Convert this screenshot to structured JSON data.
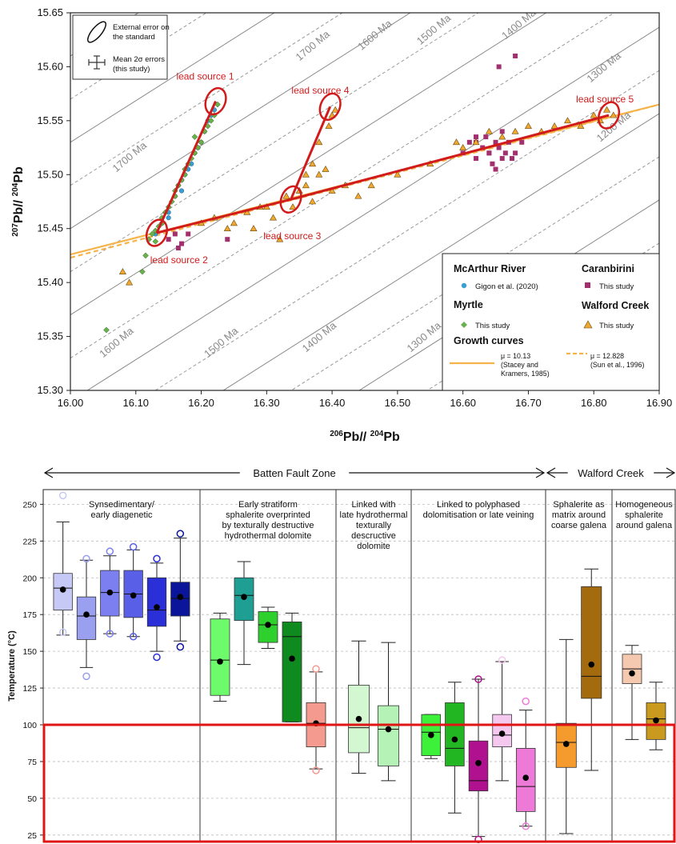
{
  "chart_data": [
    {
      "type": "scatter",
      "xlabel": "206 Pb/ 204 Pb",
      "ylabel": "207 Pb/ 204 Pb",
      "xlim": [
        16.0,
        16.9
      ],
      "ylim": [
        15.3,
        15.65
      ],
      "x_ticks": [
        "16.00",
        "16.10",
        "16.20",
        "16.30",
        "16.40",
        "16.50",
        "16.60",
        "16.70",
        "16.80",
        "16.90"
      ],
      "y_ticks": [
        "15.30",
        "15.35",
        "15.40",
        "15.45",
        "15.50",
        "15.55",
        "15.60",
        "15.65"
      ],
      "x_tick_values": [
        16.0,
        16.1,
        16.2,
        16.3,
        16.4,
        16.5,
        16.6,
        16.7,
        16.8,
        16.9
      ],
      "y_tick_values": [
        15.3,
        15.35,
        15.4,
        15.45,
        15.5,
        15.55,
        15.6,
        15.65
      ],
      "top_inset": {
        "ellipse_text": [
          "External error on",
          "the standard"
        ],
        "errorbar_text": [
          "Mean 2σ errors",
          "(this study)"
        ]
      },
      "isochron_labels": [
        "1700 Ma",
        "1600 Ma",
        "1500 Ma",
        "1400 Ma",
        "1300 Ma",
        "1700 Ma",
        "1200 Ma",
        "1600 Ma",
        "1500 Ma",
        "1400 Ma",
        "1300 Ma"
      ],
      "isochron_label_pos": [
        [
          16.35,
          15.605
        ],
        [
          16.445,
          15.615
        ],
        [
          16.535,
          15.62
        ],
        [
          16.665,
          15.625
        ],
        [
          16.795,
          15.585
        ],
        [
          16.07,
          15.502
        ],
        [
          16.81,
          15.53
        ],
        [
          16.05,
          15.33
        ],
        [
          16.21,
          15.33
        ],
        [
          16.36,
          15.335
        ],
        [
          16.52,
          15.335
        ]
      ],
      "lead_sources": [
        {
          "label": "lead source 1",
          "x": 16.222,
          "y": 15.568
        },
        {
          "label": "lead source 4",
          "x": 16.397,
          "y": 15.563
        },
        {
          "label": "lead source 3",
          "x": 16.337,
          "y": 15.477
        },
        {
          "label": "lead source 2",
          "x": 16.132,
          "y": 15.446
        },
        {
          "label": "lead source 5",
          "x": 16.823,
          "y": 15.555
        }
      ],
      "lead_source_label_pos": [
        [
          16.162,
          15.588
        ],
        [
          16.338,
          15.575
        ],
        [
          16.295,
          15.44
        ],
        [
          16.122,
          15.418
        ],
        [
          16.773,
          15.567
        ]
      ],
      "trend_lines": [
        [
          [
            16.132,
            15.446
          ],
          [
            16.222,
            15.568
          ]
        ],
        [
          [
            16.337,
            15.477
          ],
          [
            16.397,
            15.563
          ]
        ],
        [
          [
            16.132,
            15.446
          ],
          [
            16.337,
            15.477
          ],
          [
            16.823,
            15.555
          ]
        ]
      ],
      "growth_curves": [
        {
          "name": "μ = 10.13 (Stacey and Kramers, 1985)",
          "x": [
            16.0,
            16.9
          ],
          "y": [
            15.426,
            15.565
          ],
          "color": "#f5b34a",
          "style": "solid"
        },
        {
          "name": "μ = 12.828 (Sun et al., 1996)",
          "x": [
            16.0,
            16.9
          ],
          "y": [
            15.423,
            15.565
          ],
          "color": "#f5b34a",
          "style": "dashed"
        }
      ],
      "series": [
        {
          "name": "Gigon et al. (2020)",
          "group": "McArthur River",
          "color": "#3b9ed6",
          "marker": "circle",
          "x": [
            16.13,
            16.14,
            16.15,
            16.16,
            16.165,
            16.17,
            16.175,
            16.18,
            16.185,
            16.19,
            16.195,
            16.2,
            16.205,
            16.21,
            16.215,
            16.22,
            16.15,
            16.17
          ],
          "y": [
            15.445,
            15.455,
            15.465,
            15.48,
            15.49,
            15.495,
            15.5,
            15.505,
            15.51,
            15.52,
            15.525,
            15.53,
            15.54,
            15.55,
            15.555,
            15.56,
            15.46,
            15.485
          ]
        },
        {
          "name": "This study",
          "group": "Myrtle",
          "color": "#6ab04c",
          "marker": "diamond",
          "x": [
            16.055,
            16.11,
            16.115,
            16.12,
            16.125,
            16.13,
            16.135,
            16.14,
            16.145,
            16.15,
            16.155,
            16.16,
            16.165,
            16.17,
            16.175,
            16.18,
            16.185,
            16.19,
            16.195,
            16.2,
            16.205,
            16.21,
            16.215,
            16.22,
            16.225,
            16.13,
            16.14,
            16.16,
            16.175,
            16.19
          ],
          "y": [
            15.356,
            15.41,
            15.425,
            15.44,
            15.445,
            15.448,
            15.452,
            15.46,
            15.465,
            15.47,
            15.475,
            15.48,
            15.49,
            15.495,
            15.5,
            15.51,
            15.515,
            15.52,
            15.525,
            15.53,
            15.54,
            15.545,
            15.55,
            15.555,
            15.565,
            15.438,
            15.455,
            15.485,
            15.505,
            15.535
          ]
        },
        {
          "name": "This study",
          "group": "Caranbirini",
          "color": "#a3306e",
          "marker": "square",
          "x": [
            16.15,
            16.16,
            16.17,
            16.18,
            16.165,
            16.24,
            16.6,
            16.61,
            16.62,
            16.63,
            16.635,
            16.64,
            16.645,
            16.65,
            16.655,
            16.66,
            16.665,
            16.67,
            16.675,
            16.68,
            16.69,
            16.655,
            16.68,
            16.62,
            16.64,
            16.66,
            16.62,
            16.65
          ],
          "y": [
            15.44,
            15.445,
            15.436,
            15.445,
            15.432,
            15.44,
            15.52,
            15.53,
            15.515,
            15.525,
            15.535,
            15.52,
            15.51,
            15.53,
            15.525,
            15.54,
            15.52,
            15.53,
            15.515,
            15.52,
            15.53,
            15.6,
            15.61,
            15.53,
            15.52,
            15.515,
            15.535,
            15.505
          ]
        },
        {
          "name": "This study",
          "group": "Walford Creek",
          "color": "#f0a830",
          "marker": "triangle",
          "x": [
            16.08,
            16.09,
            16.2,
            16.22,
            16.24,
            16.25,
            16.27,
            16.28,
            16.3,
            16.31,
            16.33,
            16.35,
            16.36,
            16.37,
            16.38,
            16.39,
            16.4,
            16.405,
            16.42,
            16.44,
            16.46,
            16.5,
            16.55,
            16.59,
            16.6,
            16.62,
            16.64,
            16.66,
            16.68,
            16.7,
            16.72,
            16.74,
            16.76,
            16.78,
            16.8,
            16.81,
            16.82,
            16.83,
            16.38,
            16.395,
            16.37,
            16.34,
            16.36,
            16.4,
            16.32,
            16.29
          ],
          "y": [
            15.41,
            15.4,
            15.455,
            15.46,
            15.45,
            15.455,
            15.465,
            15.45,
            15.47,
            15.46,
            15.48,
            15.485,
            15.49,
            15.475,
            15.5,
            15.505,
            15.555,
            15.56,
            15.49,
            15.48,
            15.49,
            15.5,
            15.51,
            15.53,
            15.525,
            15.53,
            15.54,
            15.535,
            15.54,
            15.545,
            15.54,
            15.545,
            15.55,
            15.545,
            15.555,
            15.55,
            15.56,
            15.555,
            15.53,
            15.545,
            15.51,
            15.47,
            15.5,
            15.485,
            15.44,
            15.47
          ]
        }
      ],
      "legend": {
        "groups": [
          "McArthur River",
          "Myrtle",
          "Caranbirini",
          "Walford Creek"
        ],
        "growth_curves_title": "Growth curves",
        "mu1_lines": [
          "μ = 10.13",
          "(Stacey and",
          "Kramers, 1985)"
        ],
        "mu2_lines": [
          "μ = 12.828",
          "(Sun et al., 1996)"
        ],
        "placement": "bottom-right"
      }
    },
    {
      "type": "box",
      "ylabel": "Temperature (°C)",
      "ylim": [
        20,
        260
      ],
      "y_ticks": [
        "25",
        "50",
        "75",
        "100",
        "125",
        "150",
        "175",
        "200",
        "225",
        "250"
      ],
      "y_tick_values": [
        25,
        50,
        75,
        100,
        125,
        150,
        175,
        200,
        225,
        250
      ],
      "group_headers": [
        {
          "label": "Batten Fault Zone",
          "from": 0,
          "to": 4
        },
        {
          "label": "Walford Creek",
          "from": 4,
          "to": 6
        }
      ],
      "threshold": 100,
      "panels": [
        {
          "title": [
            "Synsedimentary/",
            "early diagenetic"
          ],
          "boxes": [
            {
              "color": "#c6c8f5",
              "q1": 178,
              "med": 193,
              "q3": 203,
              "lo": 161,
              "hi": 238,
              "mean": 192,
              "outliers": [
                256,
                163
              ]
            },
            {
              "color": "#9a9ff0",
              "q1": 158,
              "med": 174,
              "q3": 187,
              "lo": 139,
              "hi": 212,
              "mean": 175,
              "outliers": [
                133,
                213
              ]
            },
            {
              "color": "#7b7ff0",
              "q1": 174,
              "med": 190,
              "q3": 205,
              "lo": 162,
              "hi": 215,
              "mean": 190,
              "outliers": [
                218,
                162
              ]
            },
            {
              "color": "#5a5fe8",
              "q1": 173,
              "med": 189,
              "q3": 205,
              "lo": 160,
              "hi": 219,
              "mean": 188,
              "outliers": [
                221,
                160
              ]
            },
            {
              "color": "#2b2fd8",
              "q1": 167,
              "med": 178,
              "q3": 200,
              "lo": 150,
              "hi": 210,
              "mean": 180,
              "outliers": [
                213,
                146
              ]
            },
            {
              "color": "#0b1599",
              "q1": 174,
              "med": 186,
              "q3": 197,
              "lo": 157,
              "hi": 227,
              "mean": 187,
              "outliers": [
                230,
                153
              ]
            }
          ]
        },
        {
          "title": [
            "Early stratiform",
            "sphalerite overprinted",
            "by texturally destructive",
            "hydrothermal dolomite"
          ],
          "boxes": [
            {
              "color": "#6dfa6b",
              "q1": 120,
              "med": 144,
              "q3": 172,
              "lo": 116,
              "hi": 176,
              "mean": 143,
              "outliers": []
            },
            {
              "color": "#1f9e93",
              "q1": 171,
              "med": 188,
              "q3": 200,
              "lo": 141,
              "hi": 211,
              "mean": 187,
              "outliers": []
            },
            {
              "color": "#2ed02e",
              "q1": 156,
              "med": 168,
              "q3": 177,
              "lo": 152,
              "hi": 180,
              "mean": 168,
              "outliers": []
            },
            {
              "color": "#0f8a1e",
              "q1": 102,
              "med": 160,
              "q3": 170,
              "lo": 102,
              "hi": 176,
              "mean": 145,
              "outliers": []
            },
            {
              "color": "#f59a8f",
              "q1": 85,
              "med": 101,
              "q3": 115,
              "lo": 70,
              "hi": 136,
              "mean": 101,
              "outliers": [
                138,
                69
              ]
            }
          ]
        },
        {
          "title": [
            "Linked with",
            "late hydrothermal",
            "texturally",
            "descructive",
            "dolomite"
          ],
          "boxes": [
            {
              "color": "#d3f7d0",
              "q1": 81,
              "med": 98,
              "q3": 127,
              "lo": 67,
              "hi": 157,
              "mean": 104,
              "outliers": []
            },
            {
              "color": "#b4f2b6",
              "q1": 72,
              "med": 97,
              "q3": 113,
              "lo": 62,
              "hi": 156,
              "mean": 97,
              "outliers": []
            }
          ]
        },
        {
          "title": [
            "Linked to polyphased",
            "dolomitisation or late veining"
          ],
          "boxes": [
            {
              "color": "#3df03a",
              "q1": 79,
              "med": 95,
              "q3": 107,
              "lo": 77,
              "hi": 107,
              "mean": 93,
              "outliers": []
            },
            {
              "color": "#22b622",
              "q1": 72,
              "med": 84,
              "q3": 115,
              "lo": 40,
              "hi": 129,
              "mean": 90,
              "outliers": []
            },
            {
              "color": "#b0118e",
              "q1": 55,
              "med": 62,
              "q3": 89,
              "lo": 24,
              "hi": 131,
              "mean": 74,
              "outliers": [
                131,
                22
              ]
            },
            {
              "color": "#f5c8f0",
              "q1": 85,
              "med": 93,
              "q3": 107,
              "lo": 62,
              "hi": 143,
              "mean": 94,
              "outliers": [
                144
              ]
            },
            {
              "color": "#ee7ad8",
              "q1": 41,
              "med": 58,
              "q3": 84,
              "lo": 31,
              "hi": 110,
              "mean": 64,
              "outliers": [
                116,
                31
              ]
            }
          ]
        },
        {
          "title": [
            "Sphalerite as",
            "matrix around",
            "coarse galena"
          ],
          "boxes": [
            {
              "color": "#f59a2d",
              "q1": 71,
              "med": 88,
              "q3": 101,
              "lo": 26,
              "hi": 158,
              "mean": 87,
              "outliers": []
            },
            {
              "color": "#a36a0e",
              "q1": 118,
              "med": 133,
              "q3": 194,
              "lo": 69,
              "hi": 206,
              "mean": 141,
              "outliers": []
            }
          ]
        },
        {
          "title": [
            "Homogeneous",
            "sphalerite",
            "around galena"
          ],
          "boxes": [
            {
              "color": "#f5c8b0",
              "q1": 128,
              "med": 138,
              "q3": 148,
              "lo": 90,
              "hi": 154,
              "mean": 135,
              "outliers": []
            },
            {
              "color": "#c99a1e",
              "q1": 90,
              "med": 104,
              "q3": 115,
              "lo": 83,
              "hi": 129,
              "mean": 103,
              "outliers": []
            }
          ]
        }
      ]
    }
  ]
}
